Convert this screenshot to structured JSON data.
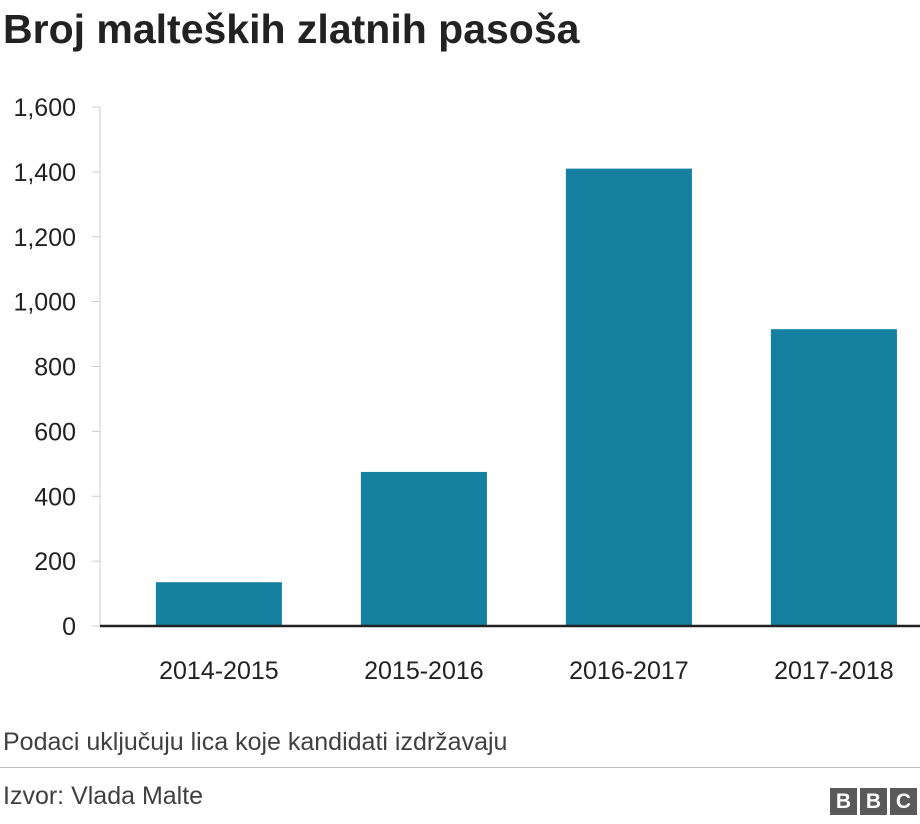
{
  "chart_data": {
    "type": "bar",
    "title": "Broj malteških zlatnih pasoša",
    "categories": [
      "2014-2015",
      "2015-2016",
      "2016-2017",
      "2017-2018"
    ],
    "values": [
      135,
      475,
      1410,
      915
    ],
    "ylim": [
      0,
      1600
    ],
    "yticks": [
      0,
      200,
      400,
      600,
      800,
      1000,
      1200,
      1400,
      1600
    ],
    "ytick_labels": [
      "0",
      "200",
      "400",
      "600",
      "800",
      "1,000",
      "1,200",
      "1,400",
      "1,600"
    ],
    "xlabel": "",
    "ylabel": "",
    "grid": false,
    "bar_color": "#1580a0"
  },
  "footer": {
    "note": "Podaci uključuju lica koje kandidati izdržavaju",
    "source": "Izvor: Vlada Malte",
    "logo_letters": [
      "B",
      "B",
      "C"
    ]
  }
}
